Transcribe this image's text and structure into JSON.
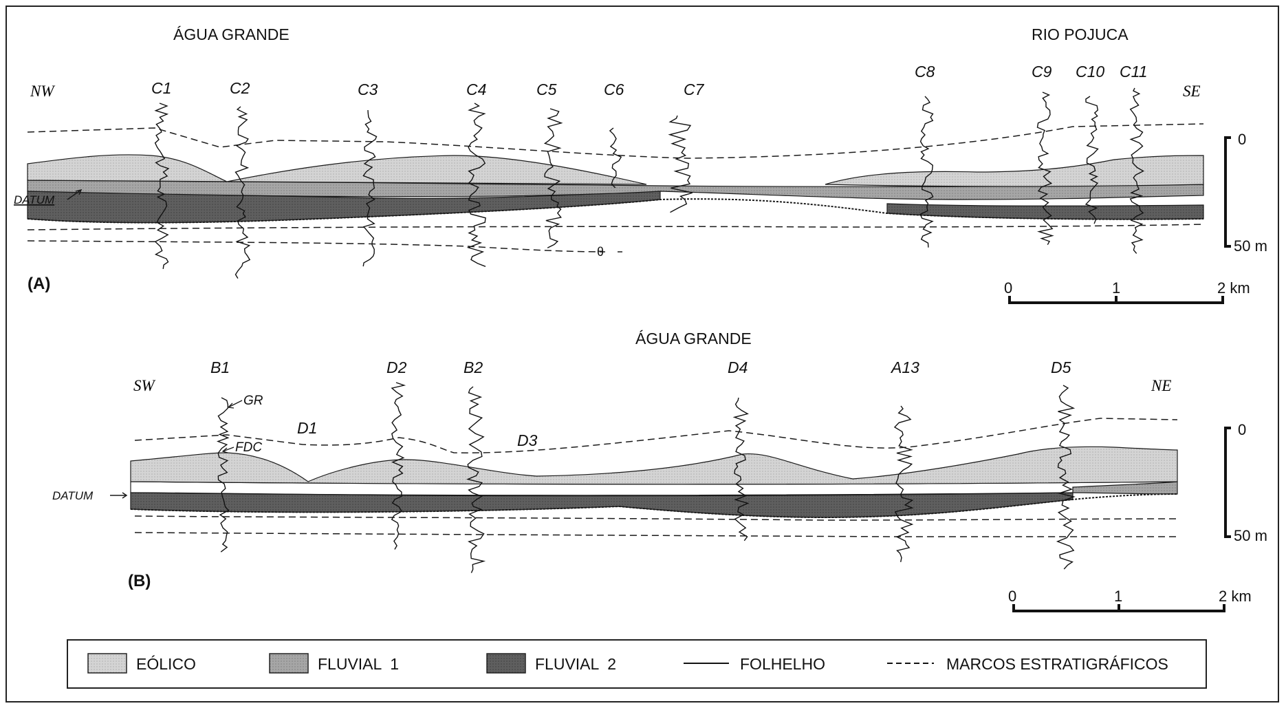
{
  "sectionA": {
    "title_left": "ÁGUA GRANDE",
    "title_right": "RIO POJUCA",
    "dir_left": "NW",
    "dir_right": "SE",
    "panel_label": "(A)",
    "datum_label": "DATUM",
    "marker_label": "θ",
    "wells": [
      "C1",
      "C2",
      "C3",
      "C4",
      "C5",
      "C6",
      "C7",
      "C8",
      "C9",
      "C10",
      "C11"
    ],
    "depth_labels": [
      "0",
      "50 m"
    ],
    "scale_labels": [
      "0",
      "1",
      "2 km"
    ]
  },
  "sectionB": {
    "title": "ÁGUA GRANDE",
    "dir_left": "SW",
    "dir_right": "NE",
    "panel_label": "(B)",
    "datum_label": "DATUM",
    "log_labels": [
      "GR",
      "FDC"
    ],
    "marker_labels": [
      "D1",
      "D3"
    ],
    "wells": [
      "B1",
      "D2",
      "B2",
      "D4",
      "A13",
      "D5"
    ],
    "depth_labels": [
      "0",
      "50 m"
    ],
    "scale_labels": [
      "0",
      "1",
      "2 km"
    ]
  },
  "legend": {
    "items": [
      "EÓLICO",
      "FLUVIAL  1",
      "FLUVIAL  2",
      "FOLHELHO",
      "MARCOS ESTRATIGRÁFICOS"
    ]
  },
  "colors": {
    "eolico": "#d2d2d2",
    "fluvial1": "#a4a4a4",
    "fluvial2": "#5e5e5e",
    "line": "#1a1a1a"
  }
}
